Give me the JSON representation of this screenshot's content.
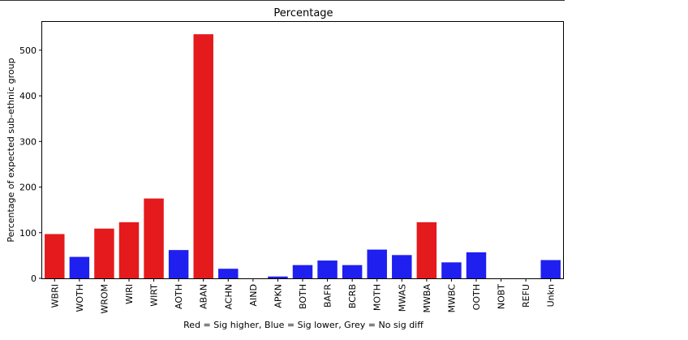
{
  "chart_data": {
    "type": "bar",
    "title": "Percentage",
    "xlabel": "Red = Sig higher, Blue = Sig lower, Grey = No sig diff",
    "ylabel": "Percentage of expected sub-ethnic group",
    "categories": [
      "WBRI",
      "WOTH",
      "WROM",
      "WIRI",
      "WIRT",
      "AOTH",
      "ABAN",
      "ACHN",
      "AIND",
      "APKN",
      "BOTH",
      "BAFR",
      "BCRB",
      "MOTH",
      "MWAS",
      "MWBA",
      "MWBC",
      "OOTH",
      "NOBT",
      "REFU",
      "Unkn"
    ],
    "values": [
      97,
      47,
      109,
      123,
      175,
      62,
      535,
      21,
      0,
      4,
      29,
      39,
      29,
      63,
      51,
      123,
      35,
      57,
      0,
      0,
      40
    ],
    "significance": [
      "higher",
      "lower",
      "higher",
      "higher",
      "higher",
      "lower",
      "higher",
      "lower",
      "none",
      "lower",
      "lower",
      "lower",
      "lower",
      "lower",
      "lower",
      "higher",
      "lower",
      "lower",
      "none",
      "none",
      "lower"
    ],
    "yticks": [
      0,
      100,
      200,
      300,
      400,
      500
    ],
    "ylim": [
      0,
      562
    ],
    "grid": false,
    "legend": "none"
  },
  "colors": {
    "higher": "#e41a1c",
    "lower": "#1f1ff0",
    "none": "#808080"
  }
}
